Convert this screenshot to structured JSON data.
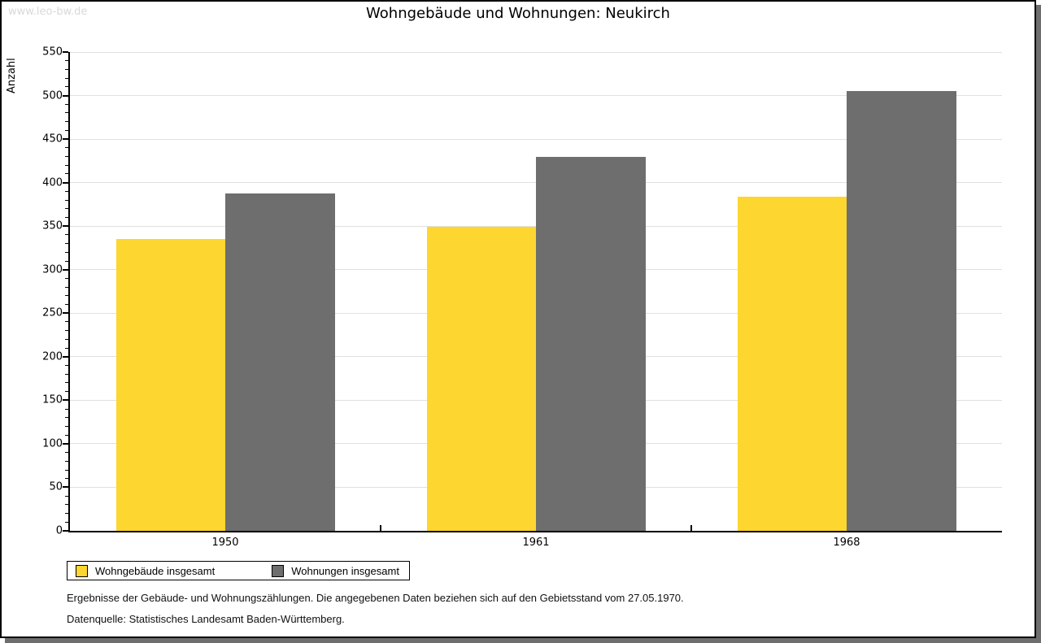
{
  "page": {
    "watermark": "www.leo-bw.de"
  },
  "chart_data": {
    "type": "bar",
    "title": "Wohngebäude und Wohnungen: Neukirch",
    "ylabel": "Anzahl",
    "xlabel": "",
    "categories": [
      "1950",
      "1961",
      "1968"
    ],
    "series": [
      {
        "name": "Wohngebäude insgesamt",
        "color": "#FDD630",
        "values": [
          335,
          349,
          384
        ]
      },
      {
        "name": "Wohnungen insgesamt",
        "color": "#6E6E6E",
        "values": [
          388,
          430,
          505
        ]
      }
    ],
    "ylim": [
      0,
      550
    ],
    "ytick_step": 50,
    "ytick_labels": [
      "0",
      "50",
      "100",
      "150",
      "200",
      "250",
      "300",
      "350",
      "400",
      "450",
      "500",
      "550"
    ],
    "minor_tick_step": 10,
    "grid": true,
    "legend_position": "bottom-left",
    "gridline_color": "#e0e0e0",
    "frame_shadow_color": "#6e6e6e"
  },
  "footer": {
    "line1": "Ergebnisse der Gebäude- und Wohnungszählungen. Die angegebenen Daten beziehen sich auf den Gebietsstand vom 27.05.1970.",
    "line2": "Datenquelle: Statistisches Landesamt Baden-Württemberg."
  }
}
